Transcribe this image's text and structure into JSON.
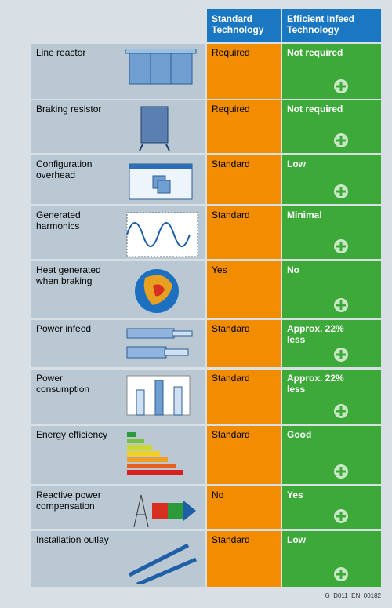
{
  "header": {
    "columns": [
      "Standard Technology",
      "Efficient Infeed Technology"
    ]
  },
  "rows": [
    {
      "label": "Line reactor",
      "standard": "Required",
      "efficient": "Not required"
    },
    {
      "label": "Braking resistor",
      "standard": "Required",
      "efficient": "Not required"
    },
    {
      "label": "Configuration overhead",
      "standard": "Standard",
      "efficient": "Low"
    },
    {
      "label": "Generated harmonics",
      "standard": "Standard",
      "efficient": "Minimal"
    },
    {
      "label": "Heat generated when braking",
      "standard": "Yes",
      "efficient": "No"
    },
    {
      "label": "Power infeed",
      "standard": "Standard",
      "efficient": "Approx. 22% less"
    },
    {
      "label": "Power consumption",
      "standard": "Standard",
      "efficient": "Approx. 22% less"
    },
    {
      "label": "Energy efficiency",
      "standard": "Standard",
      "efficient": "Good"
    },
    {
      "label": "Reactive power compensation",
      "standard": "No",
      "efficient": "Yes"
    },
    {
      "label": "Installation outlay",
      "standard": "Standard",
      "efficient": "Low"
    }
  ],
  "footer": "G_D011_EN_00182"
}
